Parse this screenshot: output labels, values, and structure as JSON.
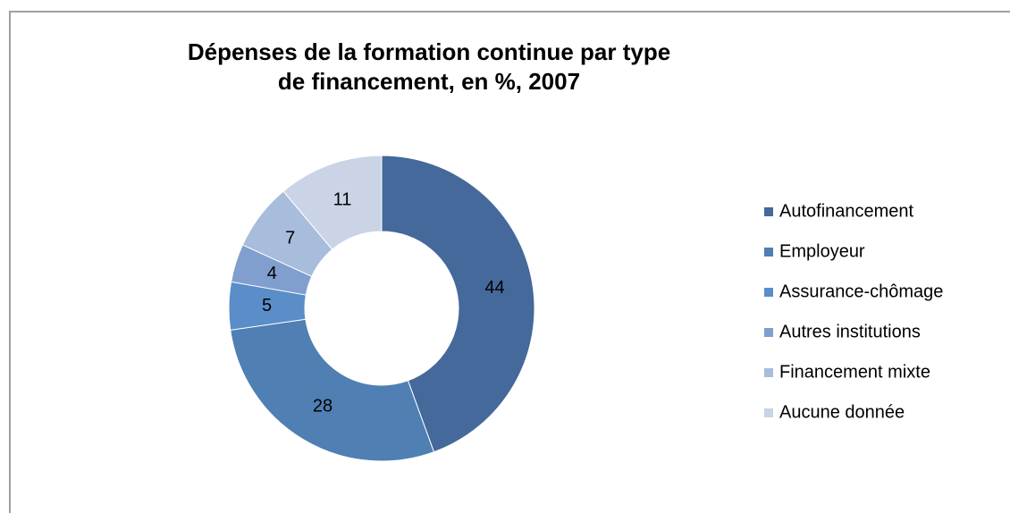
{
  "chart_data": {
    "type": "donut",
    "title": "Dépenses de la formation continue par type de financement, en %, 2007",
    "categories": [
      "Autofinancement",
      "Employeur",
      "Assurance-chômage",
      "Autres institutions",
      "Financement mixte",
      "Aucune donnée"
    ],
    "values": [
      44,
      28,
      5,
      4,
      7,
      11
    ],
    "colors": [
      "#44699a",
      "#4f7fb3",
      "#5b8dc8",
      "#809fcf",
      "#a8bcdc",
      "#cad4e6"
    ],
    "legend": "right"
  }
}
